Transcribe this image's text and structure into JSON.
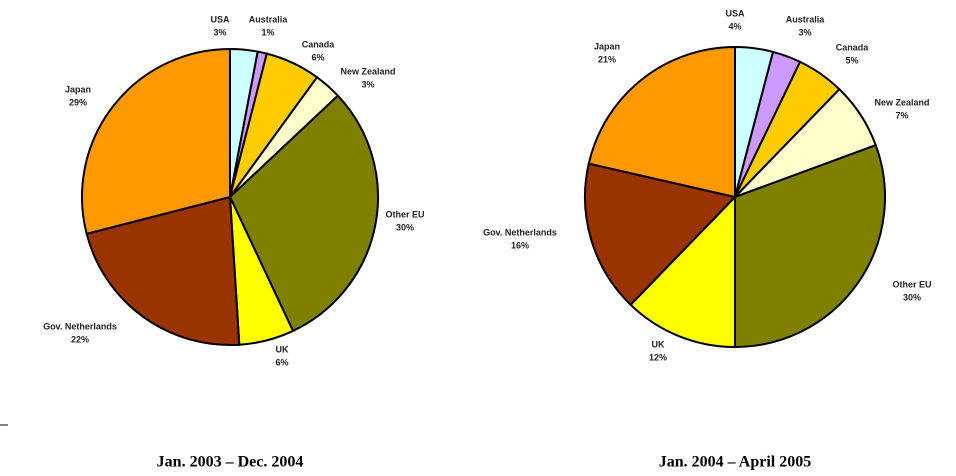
{
  "chart_data": [
    {
      "type": "pie",
      "subtitle": "Jan. 2003 – Dec. 2004",
      "categories": [
        "USA",
        "Australia",
        "Canada",
        "New Zealand",
        "Other EU",
        "UK",
        "Gov. Netherlands",
        "Japan"
      ],
      "values": [
        3,
        1,
        6,
        3,
        30,
        6,
        22,
        29
      ],
      "value_labels": [
        "3%",
        "1%",
        "6%",
        "3%",
        "30%",
        "6%",
        "22%",
        "29%"
      ],
      "colors": [
        "#ccffff",
        "#cc99ff",
        "#ffcc00",
        "#ffffcc",
        "#808000",
        "#ffff00",
        "#993300",
        "#ff9900"
      ]
    },
    {
      "type": "pie",
      "subtitle": "Jan. 2004 – April 2005",
      "categories": [
        "USA",
        "Australia",
        "Canada",
        "New Zealand",
        "Other EU",
        "UK",
        "Gov. Netherlands",
        "Japan"
      ],
      "values": [
        4,
        3,
        5,
        7,
        30,
        12,
        16,
        21
      ],
      "value_labels": [
        "4%",
        "3%",
        "5%",
        "7%",
        "30%",
        "12%",
        "16%",
        "21%"
      ],
      "colors": [
        "#ccffff",
        "#cc99ff",
        "#ffcc00",
        "#ffffcc",
        "#808000",
        "#ffff00",
        "#993300",
        "#ff9900"
      ]
    }
  ]
}
